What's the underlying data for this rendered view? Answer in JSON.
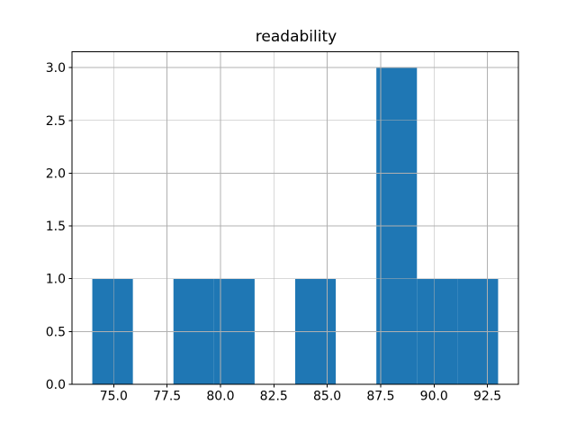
{
  "figure": {
    "background": "#ffffff"
  },
  "chart_data": {
    "type": "bar",
    "subtype": "histogram",
    "title": "readability",
    "xlabel": "",
    "ylabel": "",
    "bin_edges": [
      74.0,
      75.9,
      77.8,
      79.7,
      81.6,
      83.5,
      85.4,
      87.3,
      89.2,
      91.1,
      93.0
    ],
    "counts": [
      1,
      0,
      1,
      1,
      0,
      1,
      0,
      3,
      1,
      1
    ],
    "xlim": [
      73.05,
      93.95
    ],
    "ylim": [
      0,
      3.15
    ],
    "x_tick_labels": [
      "75.0",
      "77.5",
      "80.0",
      "82.5",
      "85.0",
      "87.5",
      "90.0",
      "92.5"
    ],
    "y_tick_labels": [
      "0.0",
      "0.5",
      "1.0",
      "1.5",
      "2.0",
      "2.5",
      "3.0"
    ],
    "grid": true,
    "grid_over_bars": true,
    "legend_position": "none",
    "bar_color": "#1f77b4",
    "grid_color": "#b0b0b0",
    "axis_color": "#000000",
    "text_color": "#000000"
  }
}
